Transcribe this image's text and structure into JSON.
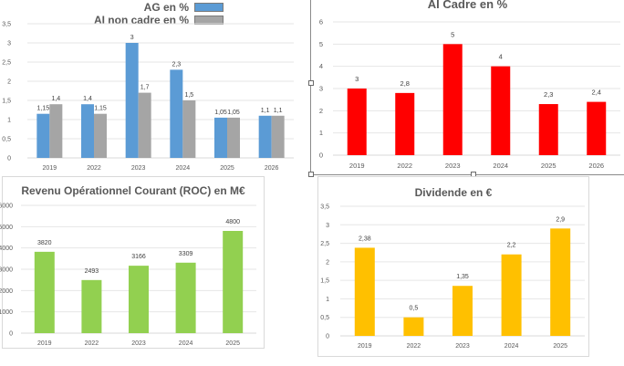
{
  "chart_data": [
    {
      "id": "ag-ai-non-cadre",
      "type": "bar",
      "title": "",
      "categories": [
        "2019",
        "2022",
        "2023",
        "2024",
        "2025",
        "2026"
      ],
      "series": [
        {
          "name": "AG en %",
          "color": "#5b9bd5",
          "values": [
            1.15,
            1.4,
            3,
            2.3,
            1.05,
            1.1
          ],
          "labels": [
            "1,15",
            "1,4",
            "3",
            "2,3",
            "1,05",
            "1,1"
          ]
        },
        {
          "name": "AI non cadre en %",
          "color": "#a5a5a5",
          "values": [
            1.4,
            1.15,
            1.7,
            1.5,
            1.05,
            1.1
          ],
          "labels": [
            "1,4",
            "1,15",
            "1,7",
            "1,5",
            "1,05",
            "1,1"
          ]
        }
      ],
      "yticks": [
        "0",
        "0,5",
        "1",
        "1,5",
        "2",
        "2,5",
        "3",
        "3,5"
      ],
      "ylim": [
        0,
        3.5
      ],
      "grid": true,
      "legend": "top-right",
      "xlabel": "",
      "ylabel": ""
    },
    {
      "id": "ai-cadre",
      "type": "bar",
      "title": "AI Cadre en %",
      "categories": [
        "2019",
        "2022",
        "2023",
        "2024",
        "2025",
        "2026"
      ],
      "series": [
        {
          "name": "AI Cadre en %",
          "color": "#ff0000",
          "values": [
            3,
            2.8,
            5,
            4,
            2.3,
            2.4
          ],
          "labels": [
            "3",
            "2,8",
            "5",
            "4",
            "2,3",
            "2,4"
          ]
        }
      ],
      "yticks": [
        "0",
        "1",
        "2",
        "3",
        "4",
        "5",
        "6"
      ],
      "ylim": [
        0,
        6
      ],
      "grid": true,
      "xlabel": "",
      "ylabel": ""
    },
    {
      "id": "roc",
      "type": "bar",
      "title": "Revenu Opérationnel Courant (ROC) en M€",
      "categories": [
        "2019",
        "2022",
        "2023",
        "2024",
        "2025"
      ],
      "series": [
        {
          "name": "ROC",
          "color": "#92d050",
          "values": [
            3820,
            2493,
            3166,
            3309,
            4800
          ],
          "labels": [
            "3820",
            "2493",
            "3166",
            "3309",
            "4800"
          ]
        }
      ],
      "yticks": [
        "0",
        "1000",
        "2000",
        "3000",
        "4000",
        "5000",
        "6000"
      ],
      "ylim": [
        0,
        6000
      ],
      "grid": true,
      "xlabel": "",
      "ylabel": ""
    },
    {
      "id": "dividende",
      "type": "bar",
      "title": "Dividende en €",
      "categories": [
        "2019",
        "2022",
        "2023",
        "2024",
        "2025"
      ],
      "series": [
        {
          "name": "Dividende",
          "color": "#ffc000",
          "values": [
            2.38,
            0.5,
            1.35,
            2.2,
            2.9
          ],
          "labels": [
            "2,38",
            "0,5",
            "1,35",
            "2,2",
            "2,9"
          ]
        }
      ],
      "yticks": [
        "0",
        "0,5",
        "1",
        "1,5",
        "2",
        "2,5",
        "3",
        "3,5"
      ],
      "ylim": [
        0,
        3.5
      ],
      "grid": true,
      "xlabel": "",
      "ylabel": ""
    }
  ]
}
